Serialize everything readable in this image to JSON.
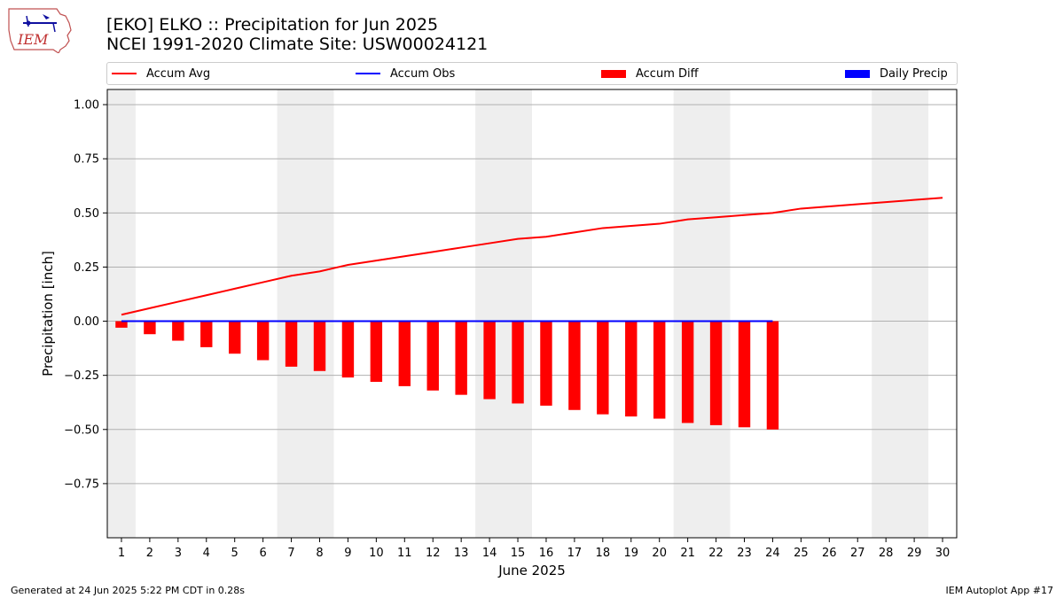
{
  "header": {
    "title_line1": "[EKO] ELKO :: Precipitation for Jun 2025",
    "title_line2": "NCEI 1991-2020 Climate Site: USW00024121"
  },
  "logo": {
    "text": "IEM",
    "icon": "iem-iowa-logo-icon"
  },
  "legend": [
    {
      "label": "Accum Avg",
      "kind": "line",
      "color": "#ff0000"
    },
    {
      "label": "Accum Obs",
      "kind": "line",
      "color": "#0000ff"
    },
    {
      "label": "Accum Diff",
      "kind": "bar",
      "color": "#ff0000"
    },
    {
      "label": "Daily Precip",
      "kind": "bar",
      "color": "#0000ff"
    }
  ],
  "footer": {
    "left": "Generated at 24 Jun 2025 5:22 PM CDT in 0.28s",
    "right": "IEM Autoplot App #17"
  },
  "chart_data": {
    "type": "bar",
    "xlabel": "June 2025",
    "ylabel": "Precipitation [inch]",
    "xlim": [
      0.5,
      30.5
    ],
    "ylim": [
      -1.0,
      1.07
    ],
    "x": [
      1,
      2,
      3,
      4,
      5,
      6,
      7,
      8,
      9,
      10,
      11,
      12,
      13,
      14,
      15,
      16,
      17,
      18,
      19,
      20,
      21,
      22,
      23,
      24,
      25,
      26,
      27,
      28,
      29,
      30
    ],
    "x_tick_labels": [
      "1",
      "2",
      "3",
      "4",
      "5",
      "6",
      "7",
      "8",
      "9",
      "10",
      "11",
      "12",
      "13",
      "14",
      "15",
      "16",
      "17",
      "18",
      "19",
      "20",
      "21",
      "22",
      "23",
      "24",
      "25",
      "26",
      "27",
      "28",
      "29",
      "30"
    ],
    "y_ticks": [
      -0.75,
      -0.5,
      -0.25,
      0.0,
      0.25,
      0.5,
      0.75,
      1.0
    ],
    "y_tick_labels": [
      "−0.75",
      "−0.50",
      "−0.25",
      "0.00",
      "0.25",
      "0.50",
      "0.75",
      "1.00"
    ],
    "grid": "horizontal",
    "legend_position": "top",
    "weekend_shading": [
      [
        0.5,
        1.5
      ],
      [
        6.5,
        8.5
      ],
      [
        13.5,
        15.5
      ],
      [
        20.5,
        22.5
      ],
      [
        27.5,
        29.5
      ]
    ],
    "series": [
      {
        "name": "Accum Avg",
        "type": "line",
        "color": "#ff0000",
        "x": [
          1,
          2,
          3,
          4,
          5,
          6,
          7,
          8,
          9,
          10,
          11,
          12,
          13,
          14,
          15,
          16,
          17,
          18,
          19,
          20,
          21,
          22,
          23,
          24,
          25,
          26,
          27,
          28,
          29,
          30
        ],
        "values": [
          0.03,
          0.06,
          0.09,
          0.12,
          0.15,
          0.18,
          0.21,
          0.23,
          0.26,
          0.28,
          0.3,
          0.32,
          0.34,
          0.36,
          0.38,
          0.39,
          0.41,
          0.43,
          0.44,
          0.45,
          0.47,
          0.48,
          0.49,
          0.5,
          0.52,
          0.53,
          0.54,
          0.55,
          0.56,
          0.57
        ]
      },
      {
        "name": "Accum Obs",
        "type": "line",
        "color": "#0000ff",
        "x": [
          1,
          2,
          3,
          4,
          5,
          6,
          7,
          8,
          9,
          10,
          11,
          12,
          13,
          14,
          15,
          16,
          17,
          18,
          19,
          20,
          21,
          22,
          23,
          24
        ],
        "values": [
          0,
          0,
          0,
          0,
          0,
          0,
          0,
          0,
          0,
          0,
          0,
          0,
          0,
          0,
          0,
          0,
          0,
          0,
          0,
          0,
          0,
          0,
          0,
          0
        ]
      },
      {
        "name": "Accum Diff",
        "type": "bar",
        "color": "#ff0000",
        "x": [
          1,
          2,
          3,
          4,
          5,
          6,
          7,
          8,
          9,
          10,
          11,
          12,
          13,
          14,
          15,
          16,
          17,
          18,
          19,
          20,
          21,
          22,
          23,
          24
        ],
        "values": [
          -0.03,
          -0.06,
          -0.09,
          -0.12,
          -0.15,
          -0.18,
          -0.21,
          -0.23,
          -0.26,
          -0.28,
          -0.3,
          -0.32,
          -0.34,
          -0.36,
          -0.38,
          -0.39,
          -0.41,
          -0.43,
          -0.44,
          -0.45,
          -0.47,
          -0.48,
          -0.49,
          -0.5
        ]
      },
      {
        "name": "Daily Precip",
        "type": "bar",
        "color": "#0000ff",
        "x": [
          1,
          2,
          3,
          4,
          5,
          6,
          7,
          8,
          9,
          10,
          11,
          12,
          13,
          14,
          15,
          16,
          17,
          18,
          19,
          20,
          21,
          22,
          23,
          24
        ],
        "values": [
          0,
          0,
          0,
          0,
          0,
          0,
          0,
          0,
          0,
          0,
          0,
          0,
          0,
          0,
          0,
          0,
          0,
          0,
          0,
          0,
          0,
          0,
          0,
          0
        ]
      }
    ]
  }
}
